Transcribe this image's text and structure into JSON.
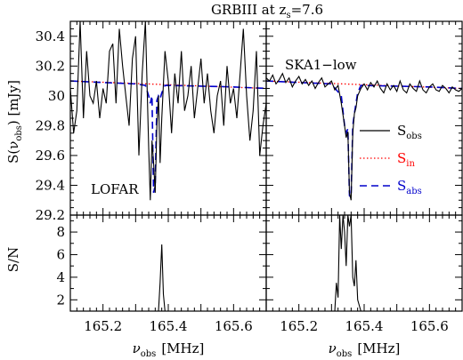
{
  "chart_data": {
    "type": "line",
    "title": "GRBIII at z",
    "title_sub": "s",
    "title_tail": "=7.6",
    "xlabel": "ν",
    "xlabel_sub": "obs",
    "xlabel_unit": "[MHz]",
    "ylabel_top": "S(ν",
    "ylabel_top_sub": "obs",
    "ylabel_top_unit": ") [mJy]",
    "ylabel_bottom": "S/N",
    "xlim": [
      165.1,
      165.7
    ],
    "xticks": [
      "165.2",
      "165.4",
      "165.6"
    ],
    "xtick_values": [
      165.2,
      165.4,
      165.6
    ],
    "ylim_top": [
      29.2,
      30.5
    ],
    "yticks_top": [
      "29.2",
      "29.4",
      "29.6",
      "29.8",
      "30",
      "30.2",
      "30.4"
    ],
    "ytick_values_top": [
      29.2,
      29.4,
      29.6,
      29.8,
      30.0,
      30.2,
      30.4
    ],
    "ylim_bottom": [
      1,
      9.5
    ],
    "yticks_bottom": [
      "2",
      "4",
      "6",
      "8"
    ],
    "ytick_values_bottom": [
      2,
      4,
      6,
      8
    ],
    "legend": {
      "placement": "right",
      "entries": [
        {
          "label": "S",
          "sub": "obs",
          "color": "#000000",
          "style": "solid"
        },
        {
          "label": "S",
          "sub": "in",
          "color": "#ff0000",
          "style": "dotted"
        },
        {
          "label": "S",
          "sub": "abs",
          "color": "#0000cc",
          "style": "dashed"
        }
      ]
    },
    "panels": [
      {
        "label": "LOFAR",
        "s_obs": {
          "x": [
            165.1,
            165.11,
            165.12,
            165.13,
            165.14,
            165.15,
            165.16,
            165.17,
            165.18,
            165.19,
            165.2,
            165.21,
            165.22,
            165.23,
            165.24,
            165.25,
            165.26,
            165.27,
            165.28,
            165.29,
            165.3,
            165.31,
            165.32,
            165.33,
            165.34,
            165.345,
            165.35,
            165.355,
            165.36,
            165.365,
            165.37,
            165.375,
            165.38,
            165.39,
            165.4,
            165.41,
            165.42,
            165.43,
            165.44,
            165.45,
            165.46,
            165.47,
            165.48,
            165.49,
            165.5,
            165.51,
            165.52,
            165.53,
            165.54,
            165.55,
            165.56,
            165.57,
            165.58,
            165.59,
            165.6,
            165.61,
            165.62,
            165.63,
            165.64,
            165.65,
            165.66,
            165.67,
            165.68,
            165.69,
            165.7
          ],
          "y": [
            30.05,
            29.75,
            29.9,
            30.5,
            29.85,
            30.3,
            30.0,
            29.95,
            30.1,
            29.85,
            30.05,
            29.95,
            30.3,
            30.35,
            29.95,
            30.45,
            30.2,
            30.0,
            29.8,
            30.25,
            30.4,
            29.6,
            30.15,
            30.5,
            29.65,
            29.3,
            29.7,
            29.55,
            29.35,
            29.8,
            30.0,
            29.55,
            29.85,
            30.3,
            30.1,
            29.75,
            30.15,
            29.95,
            30.3,
            29.9,
            30.0,
            30.2,
            29.85,
            30.05,
            30.25,
            29.95,
            30.15,
            29.9,
            29.75,
            30.0,
            30.1,
            29.8,
            30.2,
            29.95,
            30.05,
            29.85,
            30.15,
            30.45,
            30.0,
            29.7,
            29.9,
            30.3,
            29.6,
            29.8,
            29.95
          ]
        },
        "s_in": {
          "x": [
            165.1,
            165.7
          ],
          "y": [
            30.1,
            30.05
          ]
        },
        "s_abs": {
          "x": [
            165.1,
            165.2,
            165.3,
            165.33,
            165.34,
            165.345,
            165.35,
            165.355,
            165.36,
            165.365,
            165.37,
            165.375,
            165.38,
            165.39,
            165.5,
            165.6,
            165.7
          ],
          "y": [
            30.1,
            30.09,
            30.08,
            30.07,
            30.0,
            29.95,
            30.0,
            29.35,
            29.4,
            29.97,
            30.0,
            29.98,
            30.02,
            30.07,
            30.065,
            30.06,
            30.05
          ]
        },
        "snr": {
          "x": [
            165.37,
            165.375,
            165.38,
            165.385,
            165.39
          ],
          "y": [
            1,
            3.5,
            6.9,
            2.5,
            1
          ]
        }
      },
      {
        "label": "SKA1−low",
        "s_obs": {
          "x": [
            165.1,
            165.11,
            165.12,
            165.13,
            165.14,
            165.15,
            165.16,
            165.17,
            165.18,
            165.19,
            165.2,
            165.21,
            165.22,
            165.23,
            165.24,
            165.25,
            165.26,
            165.27,
            165.28,
            165.29,
            165.3,
            165.31,
            165.32,
            165.33,
            165.34,
            165.345,
            165.35,
            165.355,
            165.36,
            165.365,
            165.37,
            165.375,
            165.38,
            165.39,
            165.4,
            165.41,
            165.42,
            165.43,
            165.44,
            165.45,
            165.46,
            165.47,
            165.48,
            165.49,
            165.5,
            165.51,
            165.52,
            165.53,
            165.54,
            165.55,
            165.56,
            165.57,
            165.58,
            165.59,
            165.6,
            165.61,
            165.62,
            165.63,
            165.64,
            165.65,
            165.66,
            165.67,
            165.68,
            165.69,
            165.7
          ],
          "y": [
            30.12,
            30.1,
            30.14,
            30.08,
            30.11,
            30.15,
            30.09,
            30.12,
            30.06,
            30.1,
            30.13,
            30.08,
            30.11,
            30.07,
            30.1,
            30.05,
            30.09,
            30.12,
            30.06,
            30.08,
            30.1,
            30.04,
            30.07,
            29.95,
            29.8,
            29.72,
            29.76,
            29.35,
            29.3,
            29.75,
            29.88,
            29.92,
            30.0,
            30.05,
            30.08,
            30.04,
            30.09,
            30.06,
            30.1,
            30.05,
            30.02,
            30.08,
            30.04,
            30.07,
            30.03,
            30.1,
            30.04,
            30.02,
            30.08,
            30.05,
            30.03,
            30.1,
            30.04,
            30.02,
            30.06,
            30.08,
            30.04,
            30.03,
            30.07,
            30.05,
            30.02,
            30.06,
            30.04,
            30.03,
            30.05
          ]
        },
        "s_in": {
          "x": [
            165.1,
            165.7
          ],
          "y": [
            30.1,
            30.05
          ]
        },
        "s_abs": {
          "x": [
            165.1,
            165.2,
            165.3,
            165.33,
            165.34,
            165.345,
            165.35,
            165.355,
            165.36,
            165.365,
            165.37,
            165.375,
            165.38,
            165.39,
            165.5,
            165.6,
            165.7
          ],
          "y": [
            30.1,
            30.09,
            30.08,
            30.0,
            29.8,
            29.75,
            29.78,
            29.33,
            29.32,
            29.8,
            29.88,
            29.95,
            30.02,
            30.07,
            30.065,
            30.06,
            30.05
          ]
        },
        "snr": {
          "x": [
            165.31,
            165.315,
            165.32,
            165.325,
            165.33,
            165.335,
            165.34,
            165.345,
            165.35,
            165.355,
            165.36,
            165.365,
            165.37,
            165.375,
            165.38,
            165.385,
            165.39
          ],
          "y": [
            1,
            3.5,
            2.2,
            9.5,
            6.5,
            9.5,
            8.0,
            5.0,
            9.5,
            8.5,
            9.5,
            4.0,
            3.2,
            5.5,
            2.0,
            1.5,
            1
          ]
        }
      }
    ]
  }
}
